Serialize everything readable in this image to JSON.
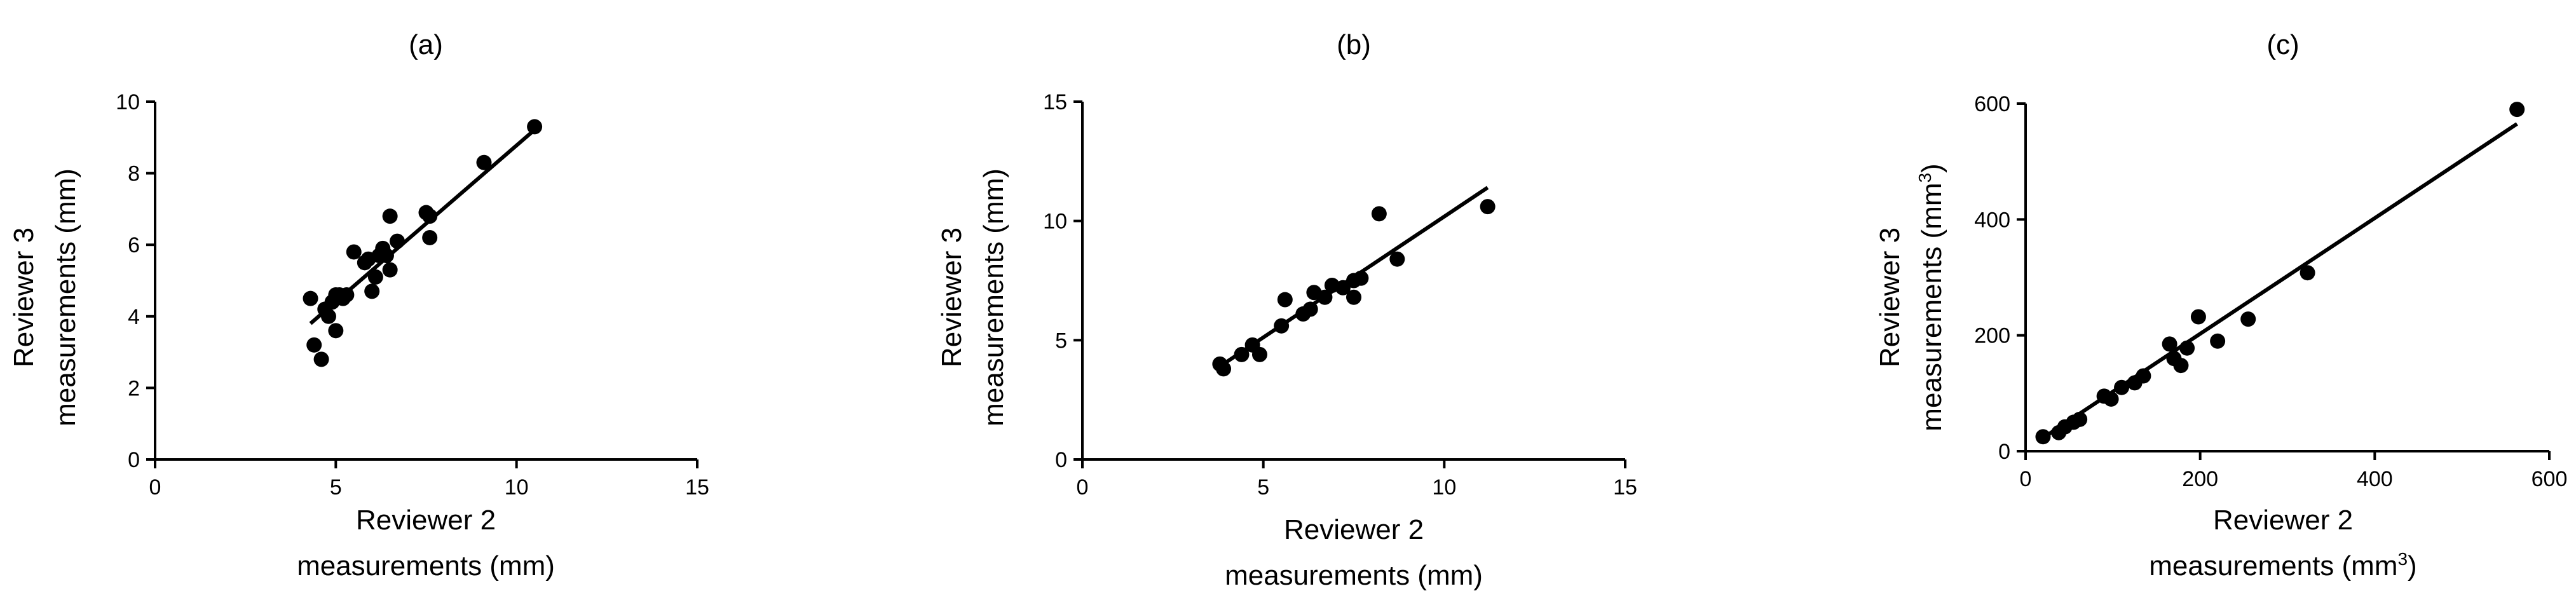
{
  "chart_data": [
    {
      "type": "scatter",
      "panel_label": "(a)",
      "title": "(a)",
      "xlabel": [
        "Reviewer 2",
        "measurements (mm)"
      ],
      "ylabel": [
        "Reviewer 3",
        "measurements (mm)"
      ],
      "xlim": [
        0,
        15
      ],
      "ylim": [
        0,
        10
      ],
      "xticks": [
        0,
        5,
        10,
        15
      ],
      "yticks": [
        0,
        2,
        4,
        6,
        8,
        10
      ],
      "grid": false,
      "fit_line": [
        [
          4.3,
          3.8
        ],
        [
          10.6,
          9.3
        ]
      ],
      "points": [
        [
          4.3,
          4.5
        ],
        [
          4.4,
          3.2
        ],
        [
          4.6,
          2.8
        ],
        [
          4.7,
          4.2
        ],
        [
          4.8,
          4.0
        ],
        [
          4.9,
          4.4
        ],
        [
          5.0,
          4.6
        ],
        [
          5.0,
          3.6
        ],
        [
          5.1,
          4.6
        ],
        [
          5.2,
          4.5
        ],
        [
          5.3,
          4.6
        ],
        [
          5.5,
          5.8
        ],
        [
          5.8,
          5.5
        ],
        [
          5.9,
          5.6
        ],
        [
          6.0,
          4.7
        ],
        [
          6.1,
          5.1
        ],
        [
          6.2,
          5.7
        ],
        [
          6.3,
          5.9
        ],
        [
          6.4,
          5.7
        ],
        [
          6.5,
          6.8
        ],
        [
          6.5,
          5.3
        ],
        [
          6.7,
          6.1
        ],
        [
          7.5,
          6.9
        ],
        [
          7.6,
          6.8
        ],
        [
          7.6,
          6.2
        ],
        [
          9.1,
          8.3
        ],
        [
          10.5,
          9.3
        ]
      ]
    },
    {
      "type": "scatter",
      "panel_label": "(b)",
      "title": "(b)",
      "xlabel": [
        "Reviewer 2",
        "measurements (mm)"
      ],
      "ylabel": [
        "Reviewer 3",
        "measurements (mm)"
      ],
      "xlim": [
        0,
        15
      ],
      "ylim": [
        0,
        15
      ],
      "xticks": [
        0,
        5,
        10,
        15
      ],
      "yticks": [
        0,
        5,
        10,
        15
      ],
      "grid": false,
      "fit_line": [
        [
          3.7,
          3.8
        ],
        [
          11.2,
          11.4
        ]
      ],
      "points": [
        [
          3.8,
          4.0
        ],
        [
          3.9,
          3.8
        ],
        [
          4.4,
          4.4
        ],
        [
          4.7,
          4.8
        ],
        [
          4.9,
          4.4
        ],
        [
          5.5,
          5.6
        ],
        [
          5.6,
          6.7
        ],
        [
          6.1,
          6.1
        ],
        [
          6.3,
          6.3
        ],
        [
          6.4,
          7.0
        ],
        [
          6.7,
          6.8
        ],
        [
          6.9,
          7.3
        ],
        [
          7.2,
          7.2
        ],
        [
          7.5,
          7.5
        ],
        [
          7.5,
          6.8
        ],
        [
          7.7,
          7.6
        ],
        [
          8.2,
          10.3
        ],
        [
          8.7,
          8.4
        ],
        [
          11.2,
          10.6
        ]
      ]
    },
    {
      "type": "scatter",
      "panel_label": "(c)",
      "title": "(c)",
      "xlabel": [
        "Reviewer 2",
        "measurements (mm",
        "3",
        ")"
      ],
      "ylabel": [
        "Reviewer 3",
        "measurements (mm",
        "3",
        ")"
      ],
      "xlim": [
        0,
        600
      ],
      "ylim": [
        0,
        600
      ],
      "xticks": [
        0,
        200,
        400,
        600
      ],
      "yticks": [
        0,
        200,
        400,
        600
      ],
      "grid": false,
      "fit_line": [
        [
          15,
          18
        ],
        [
          563,
          565
        ]
      ],
      "points": [
        [
          20,
          25
        ],
        [
          38,
          32
        ],
        [
          45,
          42
        ],
        [
          55,
          50
        ],
        [
          62,
          55
        ],
        [
          90,
          95
        ],
        [
          98,
          90
        ],
        [
          110,
          110
        ],
        [
          125,
          118
        ],
        [
          135,
          130
        ],
        [
          165,
          185
        ],
        [
          170,
          160
        ],
        [
          178,
          148
        ],
        [
          185,
          178
        ],
        [
          198,
          232
        ],
        [
          220,
          190
        ],
        [
          255,
          228
        ],
        [
          323,
          308
        ],
        [
          563,
          590
        ]
      ]
    }
  ]
}
